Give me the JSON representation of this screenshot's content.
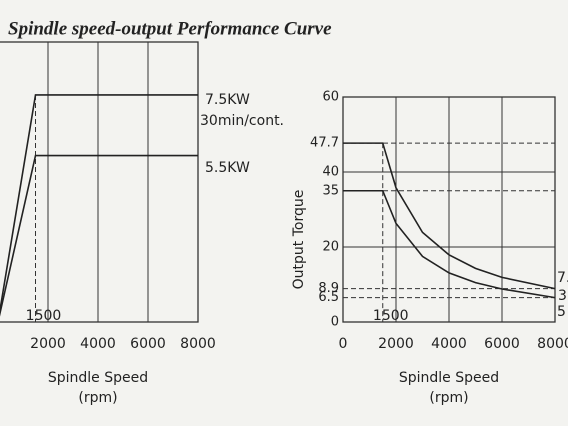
{
  "title": "Spindle speed-output Performance Curve",
  "chart_data": [
    {
      "type": "line",
      "x_label": "Spindle Speed",
      "x_unit": "(rpm)",
      "xlim": [
        0,
        8000
      ],
      "xticks": [
        2000,
        4000,
        6000,
        8000
      ],
      "ylim": [
        0,
        9.25
      ],
      "x_marker": 1500,
      "note": "30min/cont.",
      "x": [
        0,
        1500,
        8000
      ],
      "series": [
        {
          "name": "7.5KW",
          "color": "#222222",
          "values": [
            0,
            7.5,
            7.5
          ]
        },
        {
          "name": "5.5KW",
          "color": "#222222",
          "values": [
            0,
            5.5,
            5.5
          ]
        }
      ]
    },
    {
      "type": "line",
      "x_label": "Spindle Speed",
      "x_unit": "(rpm)",
      "y_label": "Output Torque",
      "xlim": [
        0,
        8000
      ],
      "xticks": [
        0,
        2000,
        4000,
        6000,
        8000
      ],
      "ylim": [
        0,
        60
      ],
      "yticks": [
        0,
        6.5,
        8.9,
        20,
        35,
        40,
        47.7,
        60
      ],
      "x_marker": 1500,
      "note": "3",
      "x": [
        0,
        1500,
        2000,
        3000,
        4000,
        5000,
        6000,
        8000
      ],
      "series": [
        {
          "name": "7.",
          "color": "#222222",
          "values": [
            47.7,
            47.7,
            35.8,
            23.9,
            17.9,
            14.3,
            11.9,
            8.9
          ]
        },
        {
          "name": "5",
          "color": "#222222",
          "values": [
            35,
            35,
            26.3,
            17.5,
            13.1,
            10.5,
            8.8,
            6.5
          ]
        }
      ]
    }
  ]
}
